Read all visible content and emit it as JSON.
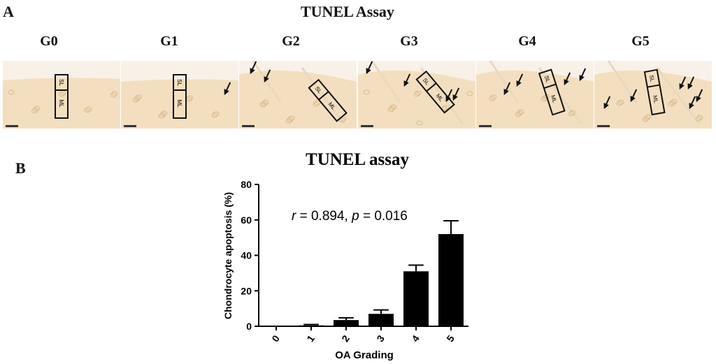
{
  "panel_a": {
    "letter": "A",
    "title": "TUNEL Assay",
    "grades": [
      "G0",
      "G1",
      "G2",
      "G3",
      "G4",
      "G5"
    ],
    "box_labels": {
      "superficial": "SL",
      "middle": "ML"
    },
    "micrograph_colors": {
      "tissue": "#f3dfbf",
      "background": "#f8f1e8",
      "box": "#111111",
      "arrow": "#111111"
    },
    "arrow_counts": [
      0,
      1,
      2,
      4,
      4,
      6
    ]
  },
  "panel_b": {
    "letter": "B"
  },
  "chart_data": {
    "type": "bar",
    "title": "TUNEL assay",
    "xlabel": "OA Grading",
    "ylabel": "Chondrocyte apoptosis (%)",
    "categories": [
      "0",
      "1",
      "2",
      "3",
      "4",
      "5"
    ],
    "values": [
      0,
      0.5,
      3.5,
      7,
      31,
      52
    ],
    "errors": [
      0,
      0.5,
      1.3,
      2.2,
      3.5,
      7.5
    ],
    "ylim": [
      0,
      80
    ],
    "yticks": [
      0,
      20,
      40,
      60,
      80
    ],
    "annotation": {
      "r_symbol": "r",
      "r_text": " = 0.894, ",
      "p_symbol": "p",
      "p_text": " = 0.016"
    },
    "bar_color": "#000000",
    "grid": false,
    "legend": "none"
  }
}
